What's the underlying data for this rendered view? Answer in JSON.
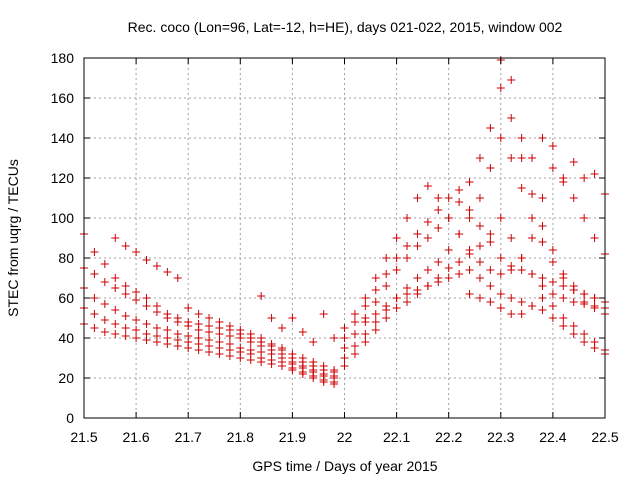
{
  "chart_data": {
    "type": "scatter",
    "title": "Rec. coco (Lon=96, Lat=-12, h=HE), days 021-022, 2015, window 002",
    "xlabel": "GPS time / Days of year 2015",
    "ylabel": "STEC from uqrg / TECUs",
    "xlim": [
      21.5,
      22.5
    ],
    "ylim": [
      0,
      180
    ],
    "xticks": [
      "21.5",
      "21.6",
      "21.7",
      "21.8",
      "21.9",
      "22",
      "22.1",
      "22.2",
      "22.3",
      "22.4",
      "22.5"
    ],
    "yticks": [
      "0",
      "20",
      "40",
      "60",
      "80",
      "100",
      "120",
      "140",
      "160",
      "180"
    ],
    "grid": true,
    "marker": "+",
    "color": "#cc0000",
    "series": [
      {
        "x": [
          21.5,
          21.52,
          21.54,
          21.56,
          21.58,
          21.6,
          21.62,
          21.64,
          21.66,
          21.68,
          21.7,
          21.72,
          21.74,
          21.76,
          21.78,
          21.8,
          21.82,
          21.84,
          21.86,
          21.88,
          21.9,
          21.92,
          21.94,
          21.96,
          21.98
        ],
        "y": [
          92,
          83,
          77,
          70,
          66,
          63,
          60,
          56,
          52,
          50,
          48,
          47,
          46,
          45,
          44,
          42,
          40,
          38,
          36,
          34,
          30,
          28,
          26,
          24,
          23
        ]
      },
      {
        "x": [
          21.5,
          21.52,
          21.54,
          21.56,
          21.58,
          21.6,
          21.62,
          21.64,
          21.66,
          21.68,
          21.7,
          21.72,
          21.74,
          21.76,
          21.78,
          21.8,
          21.82,
          21.84,
          21.86,
          21.88,
          21.9,
          21.92,
          21.94,
          21.96,
          21.98
        ],
        "y": [
          75,
          72,
          68,
          65,
          62,
          59,
          56,
          53,
          50,
          48,
          46,
          44,
          43,
          42,
          41,
          40,
          38,
          36,
          34,
          32,
          28,
          26,
          24,
          22,
          21
        ]
      },
      {
        "x": [
          21.5,
          21.52,
          21.54,
          21.56,
          21.58,
          21.6,
          21.62,
          21.64,
          21.66,
          21.68,
          21.7,
          21.72,
          21.74,
          21.76,
          21.78,
          21.8,
          21.82,
          21.84,
          21.86,
          21.88,
          21.9,
          21.92,
          21.94,
          21.96,
          21.98
        ],
        "y": [
          65,
          60,
          57,
          54,
          51,
          49,
          47,
          45,
          44,
          42,
          41,
          40,
          39,
          38,
          37,
          35,
          34,
          33,
          32,
          30,
          27,
          25,
          23,
          21,
          20
        ]
      },
      {
        "x": [
          21.5,
          21.52,
          21.54,
          21.56,
          21.58,
          21.6,
          21.62,
          21.64,
          21.66,
          21.68,
          21.7,
          21.72,
          21.74,
          21.76,
          21.78,
          21.8,
          21.82,
          21.84,
          21.86,
          21.88,
          21.9,
          21.92,
          21.94,
          21.96,
          21.98
        ],
        "y": [
          55,
          52,
          49,
          47,
          45,
          44,
          42,
          41,
          40,
          39,
          38,
          37,
          36,
          35,
          34,
          33,
          32,
          30,
          29,
          28,
          25,
          23,
          21,
          19,
          18
        ]
      },
      {
        "x": [
          21.5,
          21.52,
          21.54,
          21.56,
          21.58,
          21.6,
          21.62,
          21.64,
          21.66,
          21.68,
          21.7,
          21.72,
          21.74,
          21.76,
          21.78,
          21.8,
          21.82,
          21.84,
          21.86,
          21.88,
          21.9,
          21.92,
          21.94,
          21.96,
          21.98
        ],
        "y": [
          47,
          45,
          43,
          42,
          41,
          40,
          39,
          38,
          37,
          36,
          35,
          34,
          33,
          32,
          31,
          30,
          29,
          28,
          27,
          26,
          24,
          22,
          20,
          18,
          17
        ]
      },
      {
        "x": [
          21.56,
          21.58,
          21.6,
          21.62,
          21.64,
          21.66,
          21.68,
          21.7,
          21.72,
          21.74,
          21.76,
          21.78,
          21.8,
          21.82,
          21.84,
          21.86,
          21.88,
          21.9,
          21.92,
          21.94,
          21.96,
          21.98
        ],
        "y": [
          90,
          86,
          83,
          79,
          76,
          73,
          70,
          55,
          52,
          50,
          48,
          46,
          44,
          42,
          40,
          37,
          35,
          32,
          30,
          28,
          26,
          24
        ]
      },
      {
        "x": [
          21.84,
          21.86,
          21.88,
          21.9,
          21.92,
          21.94,
          21.96,
          21.98
        ],
        "y": [
          61,
          50,
          45,
          50,
          43,
          38,
          52,
          40
        ]
      },
      {
        "x": [
          22.0,
          22.02,
          22.04,
          22.06,
          22.08,
          22.1,
          22.12,
          22.14,
          22.16,
          22.18,
          22.2,
          22.22,
          22.24,
          22.26,
          22.28,
          22.3,
          22.32,
          22.34,
          22.36,
          22.38,
          22.4,
          22.42,
          22.44,
          22.46,
          22.48,
          22.5
        ],
        "y": [
          26,
          32,
          38,
          44,
          50,
          55,
          58,
          62,
          66,
          70,
          75,
          78,
          82,
          86,
          92,
          100,
          90,
          80,
          72,
          66,
          62,
          60,
          58,
          57,
          56,
          55
        ]
      },
      {
        "x": [
          22.0,
          22.02,
          22.04,
          22.06,
          22.08,
          22.1,
          22.12,
          22.14,
          22.16,
          22.18,
          22.2,
          22.22,
          22.24,
          22.26,
          22.28,
          22.3,
          22.32,
          22.34,
          22.36,
          22.38,
          22.4,
          22.42,
          22.44,
          22.46,
          22.48,
          22.5
        ],
        "y": [
          30,
          36,
          42,
          48,
          54,
          60,
          65,
          70,
          74,
          78,
          84,
          92,
          100,
          110,
          125,
          140,
          130,
          115,
          100,
          88,
          78,
          70,
          66,
          62,
          60,
          58
        ]
      },
      {
        "x": [
          22.0,
          22.02,
          22.04,
          22.06,
          22.08,
          22.1,
          22.12,
          22.14,
          22.16,
          22.18,
          22.2,
          22.22,
          22.24,
          22.26,
          22.28,
          22.3,
          22.32,
          22.34,
          22.36,
          22.38,
          22.4,
          22.42,
          22.44,
          22.46,
          22.48,
          22.5
        ],
        "y": [
          35,
          42,
          50,
          58,
          66,
          74,
          80,
          86,
          90,
          95,
          100,
          108,
          118,
          130,
          145,
          165,
          150,
          130,
          112,
          96,
          84,
          72,
          64,
          58,
          55,
          52
        ]
      },
      {
        "x": [
          22.0,
          22.02,
          22.04,
          22.06,
          22.08,
          22.1,
          22.12,
          22.14,
          22.16,
          22.18,
          22.2,
          22.22,
          22.24,
          22.26,
          22.28,
          22.3,
          22.32,
          22.34,
          22.36,
          22.38,
          22.4,
          22.42,
          22.44,
          22.46,
          22.48,
          22.5
        ],
        "y": [
          40,
          48,
          56,
          64,
          72,
          80,
          86,
          92,
          98,
          104,
          110,
          114,
          104,
          96,
          88,
          80,
          76,
          74,
          72,
          70,
          68,
          66,
          64,
          62,
          60,
          58
        ]
      },
      {
        "x": [
          22.0,
          22.02,
          22.04,
          22.06,
          22.08,
          22.1,
          22.12,
          22.14,
          22.16,
          22.18,
          22.2,
          22.22,
          22.24,
          22.26,
          22.28,
          22.3,
          22.32,
          22.34,
          22.36,
          22.38,
          22.4,
          22.42,
          22.44,
          22.46,
          22.48,
          22.5
        ],
        "y": [
          45,
          52,
          60,
          70,
          80,
          90,
          100,
          110,
          116,
          110,
          100,
          92,
          84,
          78,
          74,
          72,
          74,
          80,
          90,
          110,
          125,
          120,
          110,
          100,
          90,
          82
        ]
      },
      {
        "x": [
          22.04,
          22.06,
          22.08,
          22.1,
          22.12,
          22.14,
          22.16,
          22.18,
          22.2,
          22.22,
          22.24,
          22.26,
          22.28,
          22.3,
          22.32,
          22.34,
          22.36,
          22.38,
          22.4,
          22.42,
          22.44,
          22.46,
          22.48,
          22.5
        ],
        "y": [
          48,
          52,
          56,
          60,
          62,
          64,
          66,
          68,
          70,
          72,
          74,
          70,
          66,
          62,
          60,
          58,
          56,
          54,
          50,
          46,
          42,
          38,
          35,
          32
        ]
      },
      {
        "x": [
          22.24,
          22.26,
          22.28,
          22.3,
          22.32,
          22.34,
          22.36,
          22.38,
          22.4,
          22.42,
          22.44,
          22.46,
          22.48,
          22.5
        ],
        "y": [
          62,
          60,
          58,
          55,
          52,
          52,
          56,
          60,
          56,
          50,
          46,
          42,
          38,
          34
        ]
      },
      {
        "x": [
          22.3,
          22.32,
          22.34,
          22.36,
          22.38,
          22.4,
          22.42,
          22.44,
          22.46,
          22.48,
          22.5
        ],
        "y": [
          179,
          169,
          140,
          130,
          140,
          136,
          118,
          128,
          120,
          122,
          112
        ]
      }
    ]
  }
}
